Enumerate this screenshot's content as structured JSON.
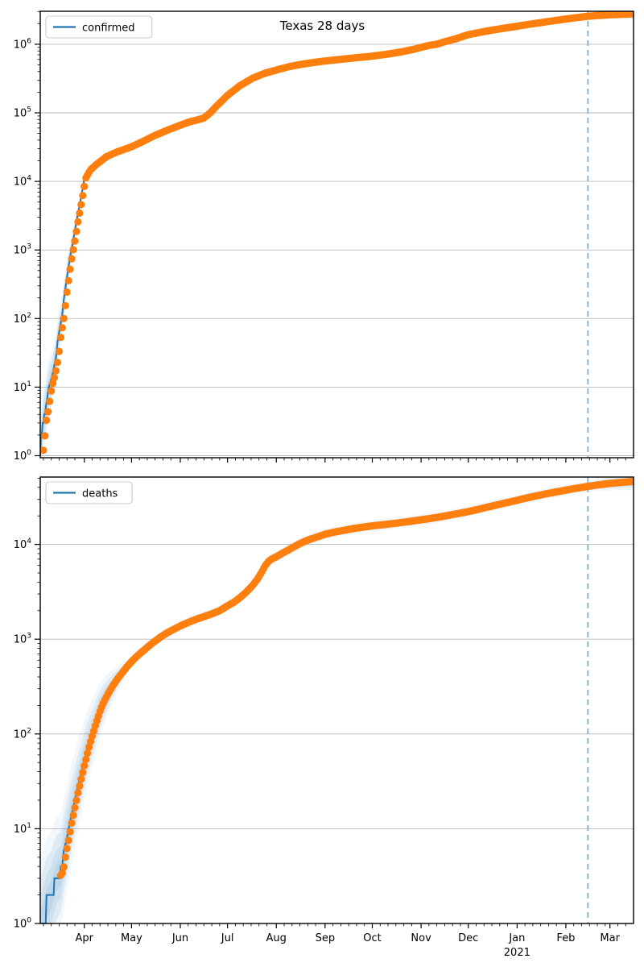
{
  "figure": {
    "title": "Texas 28 days",
    "year_label": "2021"
  },
  "colors": {
    "line": "#1f77b4",
    "dots": "#ff7f0e",
    "band": "#1f77b4",
    "forecast_line": "#7fb2d9",
    "grid": "#b9b9b9",
    "spine": "#000000",
    "legend_border": "#cccccc"
  },
  "chart_data": [
    {
      "type": "line",
      "title": "Texas 28 days",
      "legend": "confirmed",
      "legend_position": "upper left",
      "grid": "horizontal-major",
      "yscale": "log",
      "y_tick_exponents": [
        0,
        1,
        2,
        3,
        4,
        5,
        6
      ],
      "ylim": [
        1,
        2960000
      ],
      "x_ticklabels": [
        "Apr",
        "May",
        "Jun",
        "Jul",
        "Aug",
        "Sep",
        "Oct",
        "Nov",
        "Dec",
        "Jan",
        "Feb",
        "Mar"
      ],
      "x_month_start_days": [
        28,
        58,
        89,
        119,
        150,
        181,
        211,
        242,
        272,
        303,
        334,
        362
      ],
      "x_range_days": [
        0,
        377
      ],
      "forecast_start_day": 348,
      "dots_start_day": 2,
      "series": [
        {
          "name": "confirmed",
          "anchors": [
            [
              0,
              1.2
            ],
            [
              1,
              2
            ],
            [
              2,
              3.3
            ],
            [
              3,
              4.3
            ],
            [
              4,
              6
            ],
            [
              5,
              8.5
            ],
            [
              6,
              11
            ],
            [
              7,
              13
            ],
            [
              8,
              16
            ],
            [
              9,
              21
            ],
            [
              10,
              27
            ],
            [
              11,
              46
            ],
            [
              12,
              64
            ],
            [
              13,
              85
            ],
            [
              14,
              115
            ],
            [
              15,
              190
            ],
            [
              16,
              280
            ],
            [
              17,
              400
            ],
            [
              18,
              580
            ],
            [
              19,
              800
            ],
            [
              21,
              1400
            ],
            [
              23,
              2600
            ],
            [
              25,
              4500
            ],
            [
              27,
              8000
            ],
            [
              28,
              11000
            ],
            [
              31,
              14500
            ],
            [
              35,
              17500
            ],
            [
              42,
              23000
            ],
            [
              49,
              27000
            ],
            [
              58,
              32000
            ],
            [
              66,
              39000
            ],
            [
              73,
              47000
            ],
            [
              81,
              56000
            ],
            [
              89,
              66000
            ],
            [
              95,
              74000
            ],
            [
              100,
              79000
            ],
            [
              104,
              84000
            ],
            [
              108,
              100000
            ],
            [
              112,
              125000
            ],
            [
              119,
              180000
            ],
            [
              127,
              250000
            ],
            [
              135,
              320000
            ],
            [
              143,
              380000
            ],
            [
              150,
              420000
            ],
            [
              158,
              470000
            ],
            [
              166,
              510000
            ],
            [
              173,
              540000
            ],
            [
              181,
              570000
            ],
            [
              190,
              600000
            ],
            [
              199,
              630000
            ],
            [
              211,
              670000
            ],
            [
              220,
              715000
            ],
            [
              229,
              770000
            ],
            [
              238,
              850000
            ],
            [
              247,
              960000
            ],
            [
              252,
              1000000
            ],
            [
              256,
              1070000
            ],
            [
              264,
              1200000
            ],
            [
              272,
              1380000
            ],
            [
              280,
              1500000
            ],
            [
              288,
              1620000
            ],
            [
              296,
              1730000
            ],
            [
              303,
              1830000
            ],
            [
              311,
              1960000
            ],
            [
              319,
              2080000
            ],
            [
              326,
              2200000
            ],
            [
              334,
              2330000
            ],
            [
              341,
              2450000
            ],
            [
              348,
              2560000
            ],
            [
              355,
              2630000
            ],
            [
              362,
              2690000
            ],
            [
              369,
              2730000
            ],
            [
              377,
              2770000
            ]
          ]
        }
      ]
    },
    {
      "type": "line",
      "title": "",
      "legend": "deaths",
      "legend_position": "upper left",
      "grid": "horizontal-major",
      "yscale": "log",
      "y_tick_exponents": [
        0,
        1,
        2,
        3,
        4
      ],
      "ylim": [
        1,
        52000
      ],
      "x_ticklabels": [
        "Apr",
        "May",
        "Jun",
        "Jul",
        "Aug",
        "Sep",
        "Oct",
        "Nov",
        "Dec",
        "Jan",
        "Feb",
        "Mar"
      ],
      "x_month_start_days": [
        28,
        58,
        89,
        119,
        150,
        181,
        211,
        242,
        272,
        303,
        334,
        362
      ],
      "x_range_days": [
        0,
        377
      ],
      "forecast_start_day": 348,
      "dots_start_day": 13,
      "series": [
        {
          "name": "deaths",
          "anchors": [
            [
              1,
              1
            ],
            [
              4,
              1.6
            ],
            [
              7,
              2
            ],
            [
              10,
              3
            ],
            [
              13,
              3.5
            ],
            [
              15,
              5.5
            ],
            [
              17,
              8
            ],
            [
              19,
              12
            ],
            [
              21,
              17
            ],
            [
              23,
              24
            ],
            [
              25,
              33
            ],
            [
              27,
              45
            ],
            [
              28,
              52
            ],
            [
              30,
              70
            ],
            [
              32,
              90
            ],
            [
              34,
              115
            ],
            [
              36,
              145
            ],
            [
              38,
              180
            ],
            [
              40,
              215
            ],
            [
              43,
              265
            ],
            [
              46,
              320
            ],
            [
              49,
              380
            ],
            [
              52,
              440
            ],
            [
              55,
              510
            ],
            [
              58,
              580
            ],
            [
              61,
              650
            ],
            [
              64,
              720
            ],
            [
              68,
              820
            ],
            [
              72,
              930
            ],
            [
              76,
              1040
            ],
            [
              80,
              1150
            ],
            [
              84,
              1250
            ],
            [
              89,
              1380
            ],
            [
              94,
              1500
            ],
            [
              99,
              1620
            ],
            [
              104,
              1730
            ],
            [
              109,
              1850
            ],
            [
              114,
              2000
            ],
            [
              119,
              2250
            ],
            [
              123,
              2450
            ],
            [
              127,
              2750
            ],
            [
              131,
              3150
            ],
            [
              135,
              3700
            ],
            [
              138,
              4300
            ],
            [
              141,
              5200
            ],
            [
              143,
              6000
            ],
            [
              145,
              6600
            ],
            [
              147,
              7000
            ],
            [
              150,
              7400
            ],
            [
              154,
              8100
            ],
            [
              158,
              8800
            ],
            [
              162,
              9600
            ],
            [
              166,
              10400
            ],
            [
              170,
              11100
            ],
            [
              174,
              11700
            ],
            [
              178,
              12300
            ],
            [
              181,
              12800
            ],
            [
              186,
              13400
            ],
            [
              191,
              13900
            ],
            [
              196,
              14400
            ],
            [
              201,
              14900
            ],
            [
              206,
              15300
            ],
            [
              211,
              15700
            ],
            [
              217,
              16100
            ],
            [
              223,
              16500
            ],
            [
              229,
              17000
            ],
            [
              235,
              17500
            ],
            [
              241,
              18100
            ],
            [
              247,
              18700
            ],
            [
              253,
              19400
            ],
            [
              259,
              20200
            ],
            [
              265,
              21100
            ],
            [
              272,
              22200
            ],
            [
              278,
              23400
            ],
            [
              284,
              24700
            ],
            [
              290,
              26100
            ],
            [
              296,
              27500
            ],
            [
              303,
              29200
            ],
            [
              309,
              30900
            ],
            [
              315,
              32500
            ],
            [
              321,
              34100
            ],
            [
              327,
              35600
            ],
            [
              334,
              37400
            ],
            [
              340,
              39000
            ],
            [
              348,
              41000
            ],
            [
              355,
              42600
            ],
            [
              362,
              44000
            ],
            [
              369,
              45100
            ],
            [
              377,
              46200
            ]
          ]
        }
      ]
    }
  ]
}
